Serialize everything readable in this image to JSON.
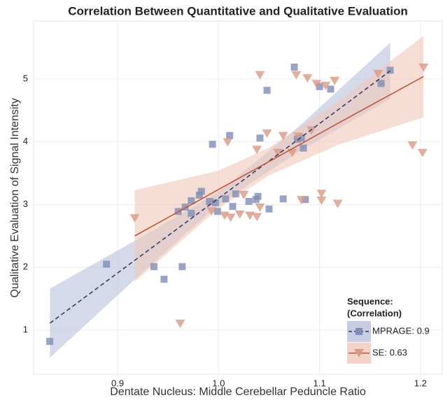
{
  "chart_data": {
    "type": "scatter",
    "title": "Correlation Between Quantitative and Qualitative Evaluation",
    "x_label": "Dentate Nucleus: Middle Cerebellar Peduncle Ratio",
    "y_label": "Qualitative Evaluation of Signal Intensity",
    "legend_title": [
      "Sequence:",
      "(Correlation)"
    ],
    "legend_position": "lower right",
    "grid": true,
    "xlim": [
      0.8168,
      1.2216
    ],
    "ylim": [
      0.298,
      5.925
    ],
    "xticks": [
      0.9,
      {
        "value": 1,
        "label": "1.0"
      },
      1.1,
      1.2
    ],
    "yticks": [
      1,
      2,
      3,
      4,
      5
    ],
    "series": [
      {
        "name": "MPRAGE: 0.9",
        "color": "#7f8db5",
        "band_color": "#b9c2dc",
        "marker": "square",
        "x": [
          0.8328,
          0.889,
          0.936,
          0.946,
          0.964,
          0.96,
          0.967,
          0.973,
          0.973,
          0.983,
          0.981,
          0.994,
          0.991,
          0.997,
          0.999,
          1.007,
          1.011,
          1.014,
          1.017,
          1.03,
          1.037,
          1.039,
          1.041,
          1.048,
          1.05,
          1.064,
          1.075,
          1.078,
          1.082,
          1.084,
          1.086,
          1.1,
          1.111,
          1.161,
          1.17
        ],
        "values": [
          0.82,
          2.05,
          2.01,
          1.81,
          2.01,
          2.89,
          2.96,
          3.06,
          2.86,
          3.21,
          3.15,
          3.96,
          3.05,
          3.03,
          2.89,
          3.09,
          4.1,
          2.97,
          3.17,
          3.05,
          3.08,
          3.13,
          4.06,
          4.82,
          2.93,
          3.09,
          5.19,
          4.04,
          4.06,
          3.9,
          3.08,
          4.88,
          4.84,
          4.93,
          5.14
        ],
        "fit": {
          "x": [
            0.833,
            0.92,
            1.0,
            1.08,
            1.17
          ],
          "y": [
            1.11,
            2.147,
            3.1,
            4.05,
            5.13
          ],
          "upper": [
            1.66,
            2.45,
            3.2,
            4.25,
            5.58
          ],
          "lower": [
            0.56,
            1.85,
            3.0,
            3.85,
            4.68
          ]
        }
      },
      {
        "name": "SE: 0.63",
        "color": "#d99a84",
        "band_color": "#f0c8b9",
        "marker": "triangle",
        "x": [
          0.917,
          0.962,
          0.993,
          1.006,
          1.012,
          1.009,
          1.021,
          1.025,
          1.031,
          1.038,
          1.038,
          1.041,
          1.041,
          1.048,
          1.059,
          1.064,
          1.073,
          1.077,
          1.079,
          1.082,
          1.088,
          1.092,
          1.097,
          1.102,
          1.102,
          1.106,
          1.115,
          1.118,
          1.158,
          1.192,
          1.202,
          1.203
        ],
        "values": [
          2.78,
          1.1,
          2.89,
          2.82,
          2.79,
          3.99,
          2.84,
          3.15,
          2.82,
          2.8,
          3.87,
          5.06,
          2.95,
          4.13,
          3.82,
          4.09,
          3.82,
          5.06,
          4.08,
          3.07,
          5.01,
          4.18,
          4.92,
          3.06,
          3.17,
          4.89,
          4.97,
          3.01,
          5.08,
          3.94,
          3.82,
          5.18
        ],
        "fit": {
          "x": [
            0.917,
            1.0,
            1.05,
            1.12,
            1.203
          ],
          "y": [
            2.5,
            3.24,
            3.685,
            4.31,
            5.04
          ],
          "upper": [
            3.23,
            3.54,
            3.905,
            4.66,
            5.69
          ],
          "lower": [
            1.77,
            2.94,
            3.465,
            3.96,
            4.39
          ]
        },
        "line_color": "#c0553a"
      }
    ]
  }
}
